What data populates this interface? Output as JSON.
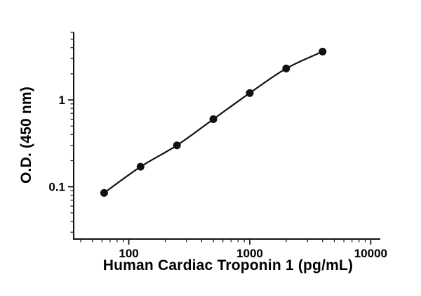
{
  "figure": {
    "background": "#ffffff"
  },
  "chart_data": {
    "type": "scatter",
    "title": "",
    "xlabel": "Human Cardiac Troponin 1 (pg/mL)",
    "ylabel": "O.D. (450 nm)",
    "x_scale": "log",
    "y_scale": "log",
    "xlim": [
      35,
      12000
    ],
    "ylim": [
      0.025,
      6
    ],
    "grid": false,
    "legend": "none",
    "line": true,
    "x": [
      62.5,
      125,
      250,
      500,
      1000,
      2000,
      4000
    ],
    "y": [
      0.085,
      0.17,
      0.3,
      0.6,
      1.2,
      2.3,
      3.6
    ],
    "x_ticks": [
      {
        "value": 100,
        "label": "100"
      },
      {
        "value": 1000,
        "label": "1000"
      },
      {
        "value": 10000,
        "label": "10000"
      }
    ],
    "y_ticks": [
      {
        "value": 0.1,
        "label": "0.1"
      },
      {
        "value": 1,
        "label": "1"
      }
    ],
    "marker": {
      "shape": "circle",
      "color": "#111111",
      "diameter": 11
    },
    "line_color": "#111111",
    "axis_color": "#111111"
  }
}
